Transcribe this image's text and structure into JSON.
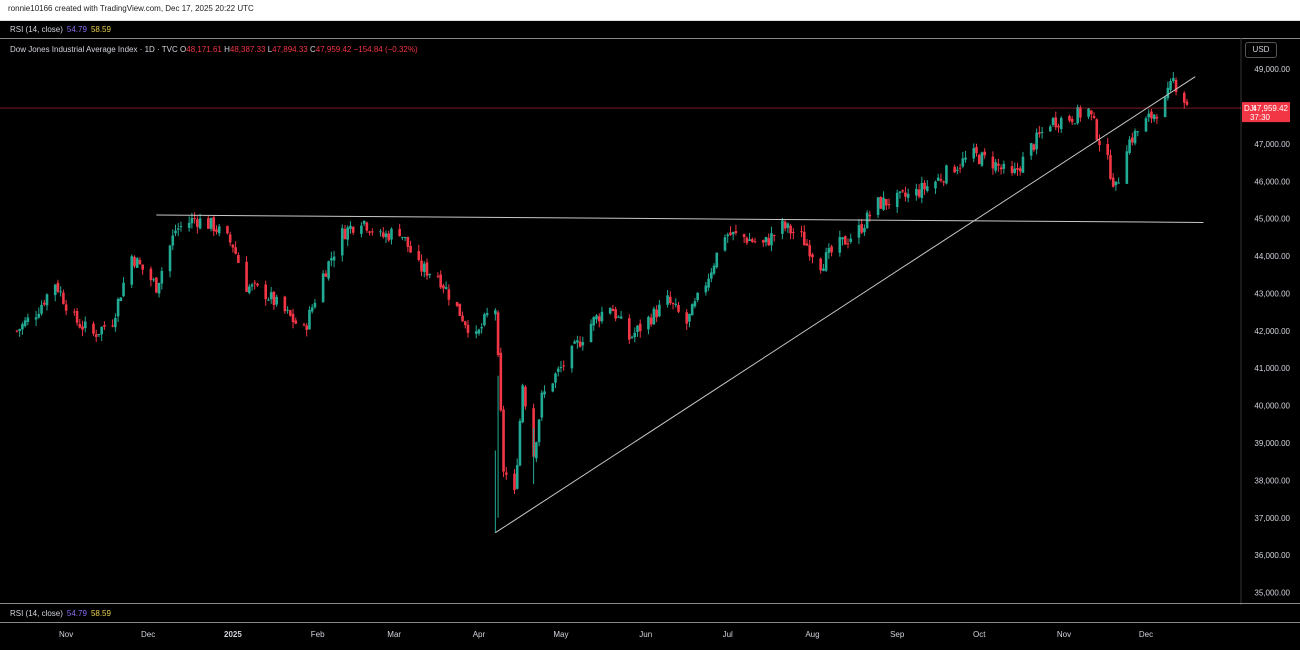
{
  "header": {
    "credit": "ronnie10166 created with TradingView.com, Dec 17, 2025 20:22 UTC"
  },
  "rsi_top": {
    "label": "RSI (14, close)",
    "v1": "54.79",
    "v2": "58.59"
  },
  "rsi_bottom": {
    "label": "RSI (14, close)",
    "v1": "54.79",
    "v2": "58.59"
  },
  "legend": {
    "name": "Dow Jones Industrial Average Index · 1D · TVC",
    "o_label": "O",
    "o": "48,171.61",
    "h_label": "H",
    "h": "48,387.33",
    "l_label": "L",
    "l": "47,894.33",
    "c_label": "C",
    "c": "47,959.42",
    "chg": "−154.84 (−0.32%)"
  },
  "currency": "USD",
  "price_tag": {
    "symbol": "DJI",
    "price": "47,959.42",
    "countdown": "37:30",
    "value": 47959.42
  },
  "colors": {
    "up": "#22ab94",
    "down": "#f23645",
    "grid": "#1a1a1a",
    "line": "#c8c8c8"
  },
  "chart_data": {
    "type": "candlestick",
    "title": "Dow Jones Industrial Average Index · 1D · TVC",
    "y_range": [
      34800,
      49300
    ],
    "y_ticks": [
      35000,
      36000,
      37000,
      38000,
      39000,
      40000,
      41000,
      42000,
      43000,
      44000,
      45000,
      46000,
      47000,
      48000,
      49000
    ],
    "y_tick_labels": [
      "35,000.00",
      "36,000.00",
      "37,000.00",
      "38,000.00",
      "39,000.00",
      "40,000.00",
      "41,000.00",
      "42,000.00",
      "43,000.00",
      "44,000.00",
      "45,000.00",
      "46,000.00",
      "47,000.00",
      "48,000.00",
      "49,000.00"
    ],
    "x_labels": [
      {
        "label": "Nov",
        "date": "2024-11-01"
      },
      {
        "label": "Dec",
        "date": "2024-12-01"
      },
      {
        "label": "2025",
        "date": "2025-01-01",
        "bold": true
      },
      {
        "label": "Feb",
        "date": "2025-02-01"
      },
      {
        "label": "Mar",
        "date": "2025-03-01"
      },
      {
        "label": "Apr",
        "date": "2025-04-01"
      },
      {
        "label": "May",
        "date": "2025-05-01"
      },
      {
        "label": "Jun",
        "date": "2025-06-01"
      },
      {
        "label": "Jul",
        "date": "2025-07-01"
      },
      {
        "label": "Aug",
        "date": "2025-08-01"
      },
      {
        "label": "Sep",
        "date": "2025-09-01"
      },
      {
        "label": "Oct",
        "date": "2025-10-01"
      },
      {
        "label": "Nov",
        "date": "2025-11-01"
      },
      {
        "label": "Dec",
        "date": "2025-12-01"
      }
    ],
    "closes": [
      {
        "date": "2024-10-14",
        "close": 42000
      },
      {
        "date": "2024-10-21",
        "close": 42500
      },
      {
        "date": "2024-10-28",
        "close": 43300
      },
      {
        "date": "2024-11-04",
        "close": 42300
      },
      {
        "date": "2024-11-11",
        "close": 41900
      },
      {
        "date": "2024-11-18",
        "close": 42300
      },
      {
        "date": "2024-11-25",
        "close": 44000
      },
      {
        "date": "2024-12-04",
        "close": 43200
      },
      {
        "date": "2024-12-11",
        "close": 44700
      },
      {
        "date": "2024-12-18",
        "close": 45000
      },
      {
        "date": "2024-12-25",
        "close": 44800
      },
      {
        "date": "2025-01-01",
        "close": 44300
      },
      {
        "date": "2025-01-06",
        "close": 43200
      },
      {
        "date": "2025-01-13",
        "close": 43000
      },
      {
        "date": "2025-01-20",
        "close": 42500
      },
      {
        "date": "2025-01-27",
        "close": 42000
      },
      {
        "date": "2025-02-03",
        "close": 43500
      },
      {
        "date": "2025-02-10",
        "close": 44600
      },
      {
        "date": "2025-02-17",
        "close": 45000
      },
      {
        "date": "2025-02-24",
        "close": 44500
      },
      {
        "date": "2025-03-03",
        "close": 44700
      },
      {
        "date": "2025-03-10",
        "close": 43700
      },
      {
        "date": "2025-03-17",
        "close": 43500
      },
      {
        "date": "2025-03-24",
        "close": 42600
      },
      {
        "date": "2025-03-31",
        "close": 41800
      },
      {
        "date": "2025-04-04",
        "close": 42400
      },
      {
        "date": "2025-04-07",
        "close": 42600
      },
      {
        "date": "2025-04-10",
        "close": 38300
      },
      {
        "date": "2025-04-14",
        "close": 37600
      },
      {
        "date": "2025-04-17",
        "close": 40600
      },
      {
        "date": "2025-04-21",
        "close": 38700
      },
      {
        "date": "2025-04-24",
        "close": 40200
      },
      {
        "date": "2025-04-28",
        "close": 40700
      },
      {
        "date": "2025-05-05",
        "close": 41400
      },
      {
        "date": "2025-05-12",
        "close": 42200
      },
      {
        "date": "2025-05-19",
        "close": 42700
      },
      {
        "date": "2025-05-26",
        "close": 41800
      },
      {
        "date": "2025-06-02",
        "close": 42300
      },
      {
        "date": "2025-06-09",
        "close": 42800
      },
      {
        "date": "2025-06-16",
        "close": 42200
      },
      {
        "date": "2025-06-23",
        "close": 43300
      },
      {
        "date": "2025-06-30",
        "close": 44600
      },
      {
        "date": "2025-07-07",
        "close": 44500
      },
      {
        "date": "2025-07-14",
        "close": 44300
      },
      {
        "date": "2025-07-21",
        "close": 44800
      },
      {
        "date": "2025-07-28",
        "close": 44500
      },
      {
        "date": "2025-08-04",
        "close": 43800
      },
      {
        "date": "2025-08-11",
        "close": 44300
      },
      {
        "date": "2025-08-18",
        "close": 44700
      },
      {
        "date": "2025-08-25",
        "close": 45400
      },
      {
        "date": "2025-09-01",
        "close": 45500
      },
      {
        "date": "2025-09-08",
        "close": 45700
      },
      {
        "date": "2025-09-15",
        "close": 46000
      },
      {
        "date": "2025-09-22",
        "close": 46400
      },
      {
        "date": "2025-09-29",
        "close": 46700
      },
      {
        "date": "2025-10-06",
        "close": 46500
      },
      {
        "date": "2025-10-13",
        "close": 46100
      },
      {
        "date": "2025-10-20",
        "close": 46900
      },
      {
        "date": "2025-10-27",
        "close": 47600
      },
      {
        "date": "2025-11-03",
        "close": 47700
      },
      {
        "date": "2025-11-10",
        "close": 47900
      },
      {
        "date": "2025-11-17",
        "close": 46500
      },
      {
        "date": "2025-11-20",
        "close": 45800
      },
      {
        "date": "2025-11-24",
        "close": 47000
      },
      {
        "date": "2025-12-01",
        "close": 47600
      },
      {
        "date": "2025-12-08",
        "close": 48100
      },
      {
        "date": "2025-12-11",
        "close": 48700
      },
      {
        "date": "2025-12-17",
        "close": 47959
      }
    ],
    "trendlines": [
      {
        "name": "horizontal-resistance",
        "from": {
          "date": "2024-12-04",
          "price": 45100
        },
        "to": {
          "date": "2025-12-22",
          "price": 44900
        }
      },
      {
        "name": "rising-support",
        "from": {
          "date": "2025-04-07",
          "price": 36600
        },
        "to": {
          "date": "2025-12-19",
          "price": 48800
        }
      }
    ],
    "grid": false,
    "legend_position": "top-left"
  }
}
